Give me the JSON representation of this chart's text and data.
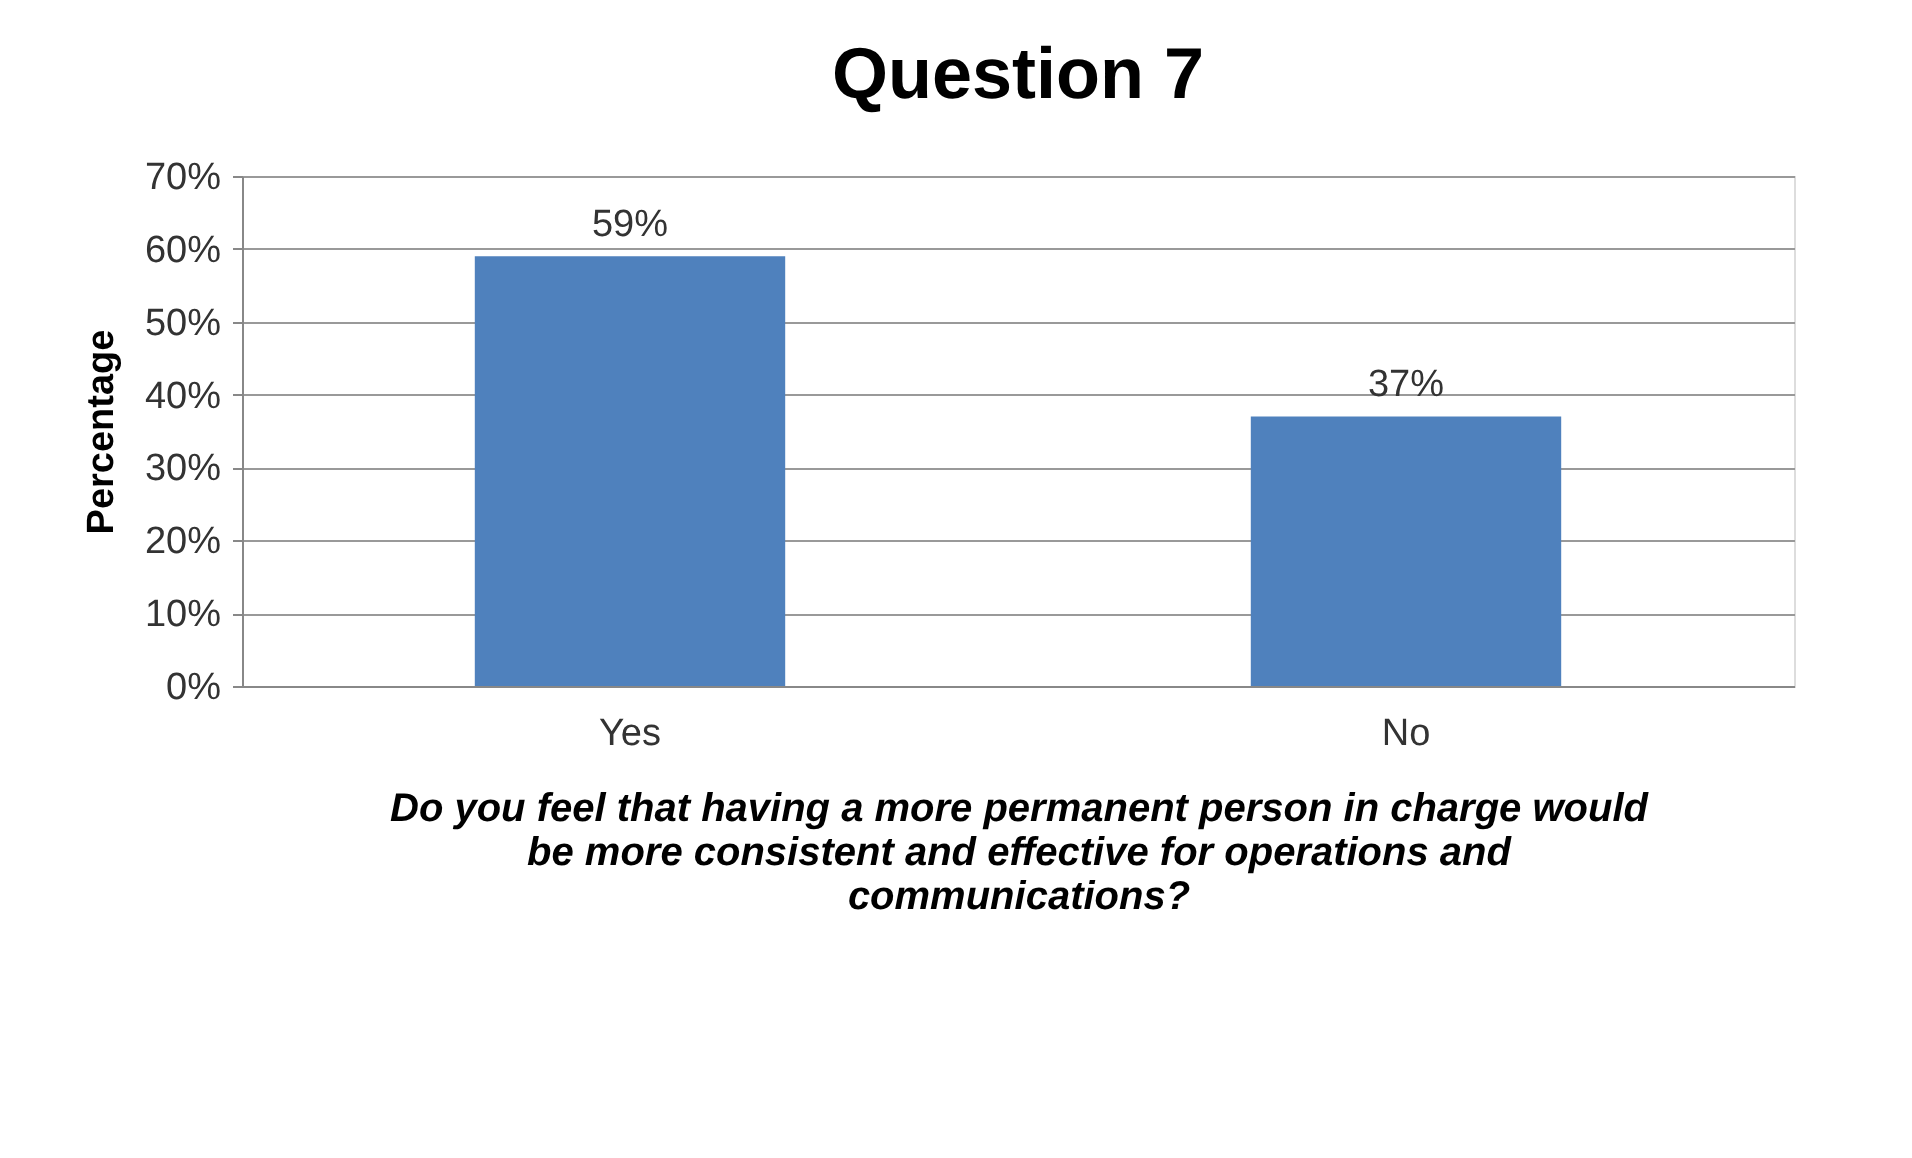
{
  "chart_data": {
    "type": "bar",
    "title": "Question 7",
    "ylabel": "Percentage",
    "xlabel": "Do you feel that having a more permanent person in charge would be more consistent and effective for operations and communications?",
    "categories": [
      "Yes",
      "No"
    ],
    "series": [
      {
        "color": "#4f81bd",
        "values": [
          59,
          37
        ],
        "value_labels": [
          "59%",
          "37%"
        ]
      }
    ],
    "ylim": [
      0,
      70
    ],
    "yticks": [
      {
        "value": 0,
        "label": "0%"
      },
      {
        "value": 10,
        "label": "10%"
      },
      {
        "value": 20,
        "label": "20%"
      },
      {
        "value": 30,
        "label": "30%"
      },
      {
        "value": 40,
        "label": "40%"
      },
      {
        "value": 50,
        "label": "50%"
      },
      {
        "value": 60,
        "label": "60%"
      },
      {
        "value": 70,
        "label": "70%"
      }
    ],
    "grid": "y",
    "legend": false
  }
}
